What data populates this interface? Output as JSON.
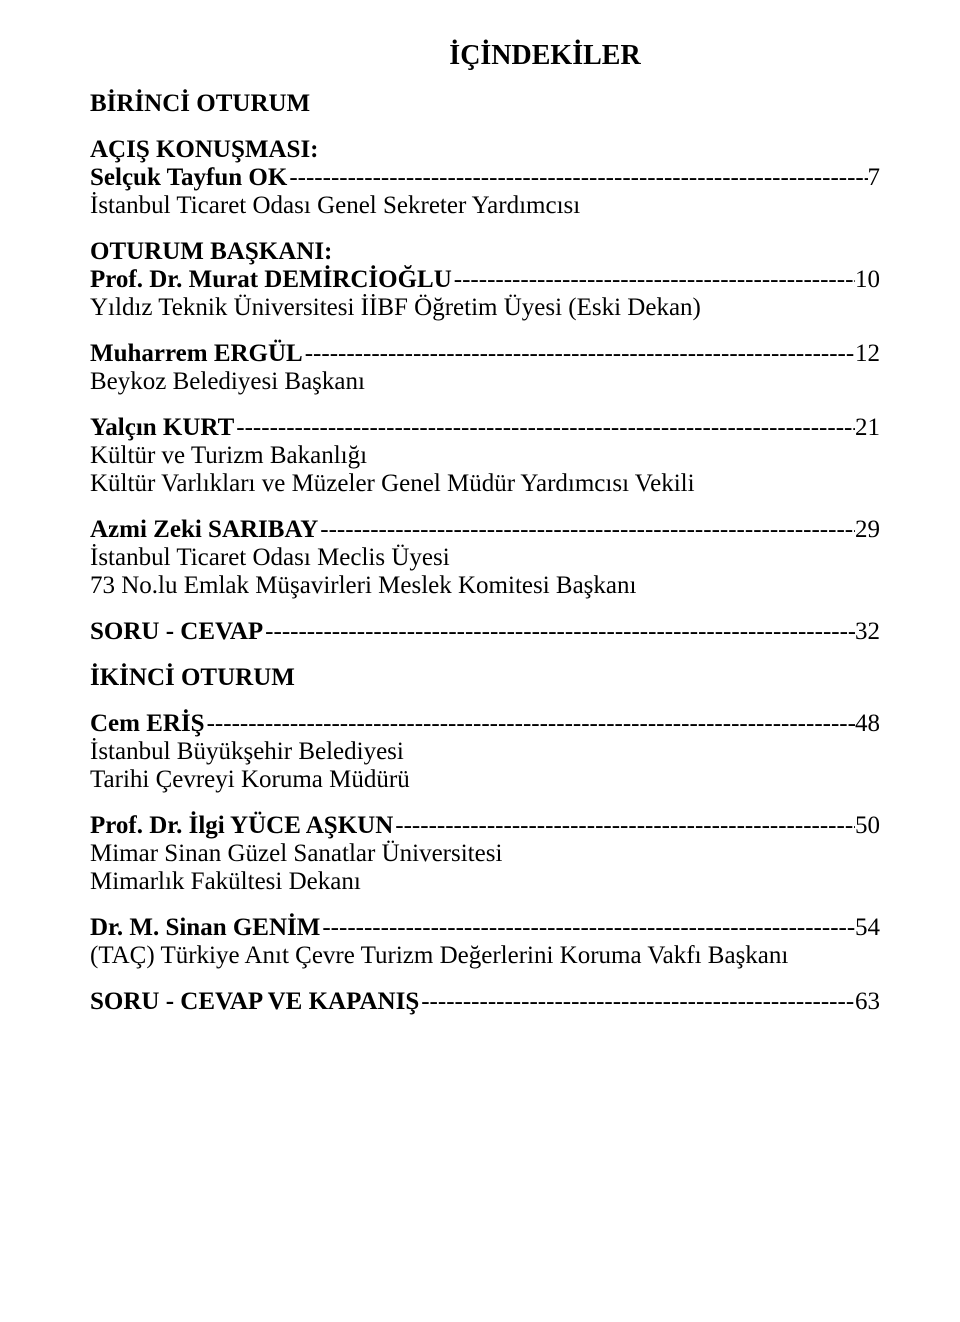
{
  "title": "İÇİNDEKİLER",
  "session1": "BİRİNCİ OTURUM",
  "acis": "AÇIŞ KONUŞMASI:",
  "entries": [
    {
      "name": "Selçuk Tayfun OK",
      "desc": "İstanbul Ticaret Odası Genel Sekreter Yardımcısı",
      "page": "7"
    }
  ],
  "oturum_baskani": "OTURUM BAŞKANI:",
  "entries2": [
    {
      "name": "Prof. Dr. Murat DEMİRCİOĞLU",
      "desc": "Yıldız Teknik Üniversitesi İİBF Öğretim Üyesi (Eski Dekan)",
      "page": "10"
    },
    {
      "name": "Muharrem ERGÜL",
      "desc": "Beykoz Belediyesi Başkanı",
      "page": "12"
    },
    {
      "name": "Yalçın KURT",
      "desc": "Kültür ve Turizm Bakanlığı",
      "desc2": "Kültür Varlıkları ve Müzeler Genel Müdür Yardımcısı Vekili",
      "page": "21"
    },
    {
      "name": "Azmi Zeki SARIBAY",
      "desc": "İstanbul Ticaret Odası Meclis Üyesi",
      "desc2": "73 No.lu Emlak Müşavirleri Meslek Komitesi Başkanı",
      "page": "29"
    }
  ],
  "soru_cevap": {
    "name": "SORU - CEVAP",
    "page": "32"
  },
  "session2": "İKİNCİ OTURUM",
  "entries3": [
    {
      "name": "Cem ERİŞ",
      "desc": "İstanbul Büyükşehir Belediyesi",
      "desc2": "Tarihi Çevreyi Koruma Müdürü",
      "page": "48"
    },
    {
      "name": "Prof. Dr. İlgi YÜCE AŞKUN",
      "desc": "Mimar Sinan Güzel Sanatlar Üniversitesi",
      "desc2": "Mimarlık Fakültesi Dekanı",
      "page": "50"
    },
    {
      "name": "Dr. M. Sinan GENİM",
      "desc": "(TAÇ) Türkiye Anıt Çevre Turizm Değerlerini Koruma Vakfı Başkanı",
      "page": "54"
    }
  ],
  "soru_cevap2": {
    "name": "SORU - CEVAP VE KAPANIŞ",
    "page": "63"
  },
  "dash_fill": "-------------------------------------------------------------------------------------------------------------------"
}
